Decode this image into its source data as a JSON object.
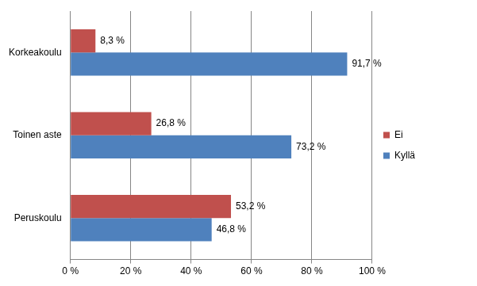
{
  "chart_data": {
    "type": "bar",
    "orientation": "horizontal",
    "categories": [
      "Korkeakoulu",
      "Toinen aste",
      "Peruskoulu"
    ],
    "series": [
      {
        "name": "Ei",
        "color": "#c0504d",
        "values": [
          8.3,
          26.8,
          53.2
        ],
        "value_labels": [
          "8,3 %",
          "26,8 %",
          "53,2 %"
        ]
      },
      {
        "name": "Kyllä",
        "color": "#4f81bd",
        "values": [
          91.7,
          73.2,
          46.8
        ],
        "value_labels": [
          "91,7 %",
          "73,2 %",
          "46,8 %"
        ]
      }
    ],
    "xlim": [
      0,
      100
    ],
    "xticks": [
      {
        "value": 0,
        "label": "0 %"
      },
      {
        "value": 20,
        "label": "20 %"
      },
      {
        "value": 40,
        "label": "40 %"
      },
      {
        "value": 60,
        "label": "60 %"
      },
      {
        "value": 80,
        "label": "80 %"
      },
      {
        "value": 100,
        "label": "100 %"
      }
    ],
    "grid": true,
    "legend": "right",
    "data_labels": true
  }
}
